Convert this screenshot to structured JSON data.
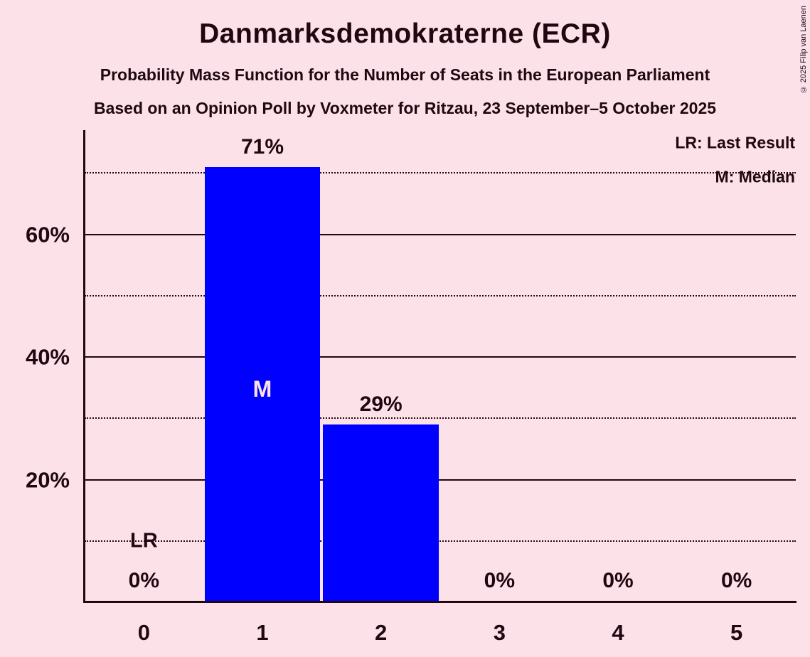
{
  "title": "Danmarksdemokraterne (ECR)",
  "subtitles": [
    "Probability Mass Function for the Number of Seats in the European Parliament",
    "Based on an Opinion Poll by Voxmeter for Ritzau, 23 September–5 October 2025"
  ],
  "legend": {
    "last_result": "LR: Last Result",
    "median": "M: Median"
  },
  "copyright": "© 2025 Filip van Laenen",
  "annotations": {
    "m_label": "M",
    "lr_label": "LR"
  },
  "colors": {
    "background": "#fce2e8",
    "bar": "#0000ff",
    "text": "#1f0812",
    "median_text": "#fce2e8"
  },
  "chart_data": {
    "type": "bar",
    "title": "Danmarksdemokraterne (ECR)",
    "categories": [
      "0",
      "1",
      "2",
      "3",
      "4",
      "5"
    ],
    "values": [
      0,
      71,
      29,
      0,
      0,
      0
    ],
    "bar_labels": [
      "0%",
      "71%",
      "29%",
      "0%",
      "0%",
      "0%"
    ],
    "xlabel": "",
    "ylabel": "",
    "ylim": [
      0,
      77
    ],
    "y_ticks": [
      20,
      40,
      60
    ],
    "y_tick_labels": [
      "20%",
      "40%",
      "60%"
    ],
    "solid_gridlines": [
      20,
      40,
      60
    ],
    "dotted_gridlines": [
      10,
      30,
      50,
      70
    ],
    "median_category": "1",
    "last_result_category": "0",
    "legend_position": "top-right",
    "grid": true
  }
}
